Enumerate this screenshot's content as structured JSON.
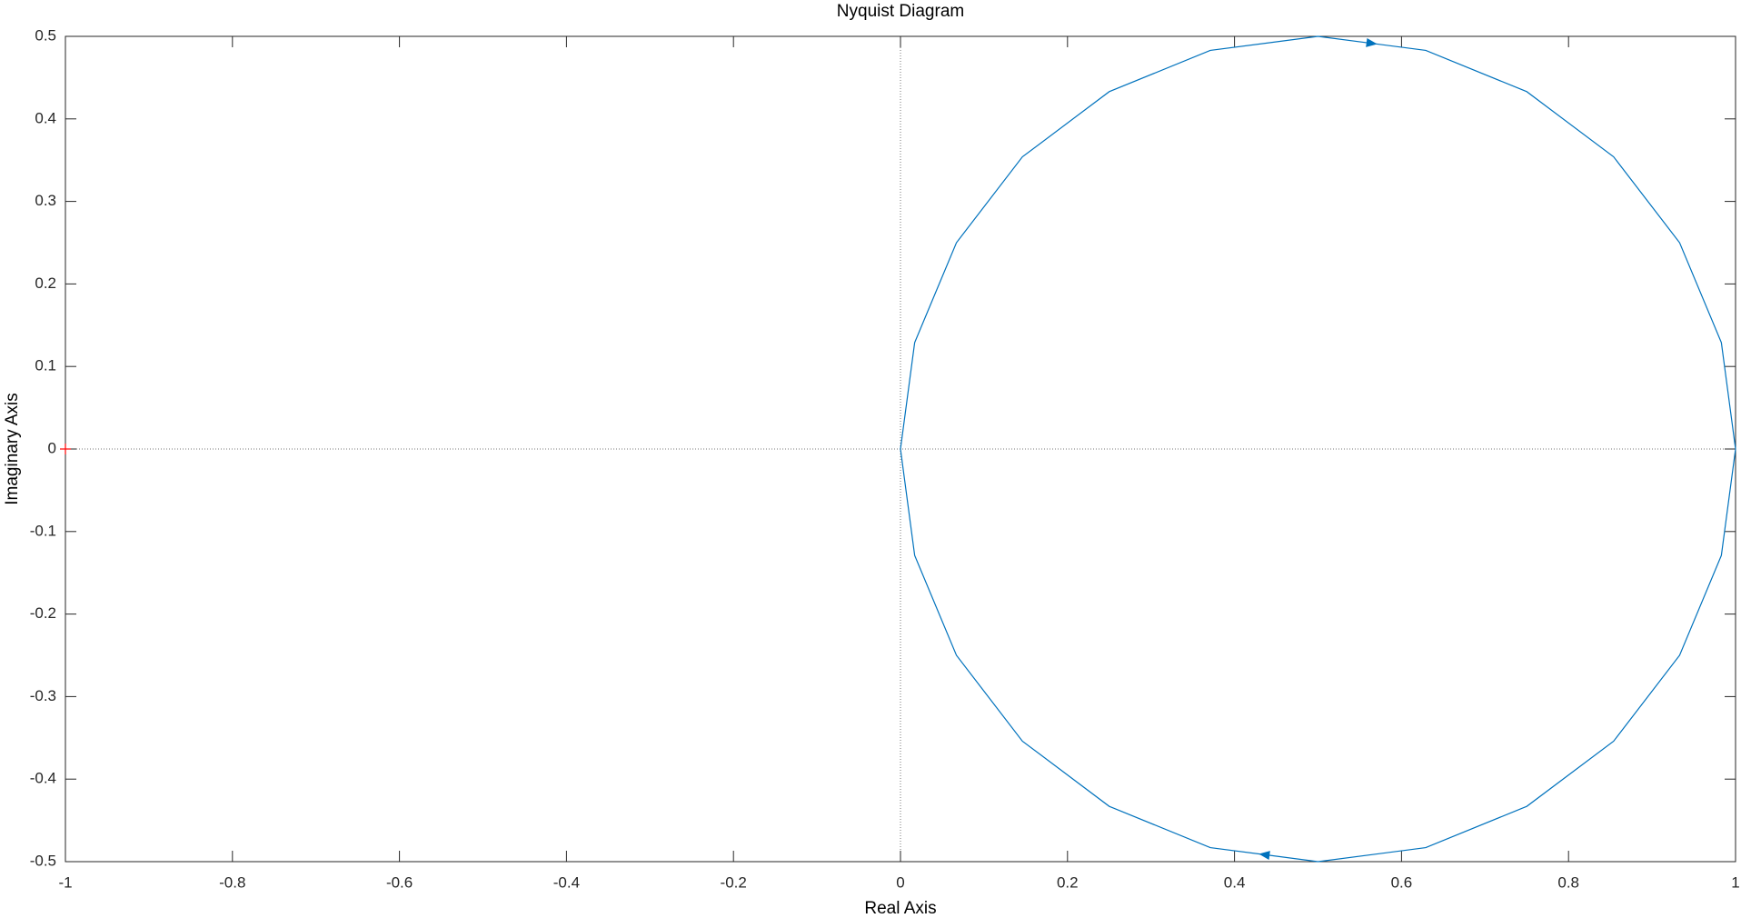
{
  "chart_data": {
    "type": "line",
    "title": "Nyquist Diagram",
    "x_label": "Real Axis",
    "y_label": "Imaginary Axis",
    "xlim": [
      -1,
      1
    ],
    "ylim": [
      -0.5,
      0.5
    ],
    "xticks": [
      -1,
      -0.8,
      -0.6,
      -0.4,
      -0.2,
      0,
      0.2,
      0.4,
      0.6,
      0.8,
      1
    ],
    "yticks": [
      -0.5,
      -0.4,
      -0.3,
      -0.2,
      -0.1,
      0,
      0.1,
      0.2,
      0.3,
      0.4,
      0.5
    ],
    "series": [
      {
        "color": "#0072bd",
        "x": [
          1,
          0.983,
          0.933,
          0.854,
          0.75,
          0.629,
          0.5,
          0.371,
          0.25,
          0.146,
          0.067,
          0.017,
          0,
          0.017,
          0.067,
          0.146,
          0.25,
          0.371,
          0.5,
          0.629,
          0.75,
          0.854,
          0.933,
          0.983,
          1
        ],
        "values": [
          0,
          -0.129,
          -0.25,
          -0.354,
          -0.433,
          -0.483,
          -0.5,
          -0.483,
          -0.433,
          -0.354,
          -0.25,
          -0.129,
          0,
          0.129,
          0.25,
          0.354,
          0.433,
          0.483,
          0.5,
          0.483,
          0.433,
          0.354,
          0.25,
          0.129,
          0
        ]
      }
    ],
    "markers": [
      {
        "x": -1,
        "y": 0,
        "color": "#ff0000"
      }
    ]
  }
}
